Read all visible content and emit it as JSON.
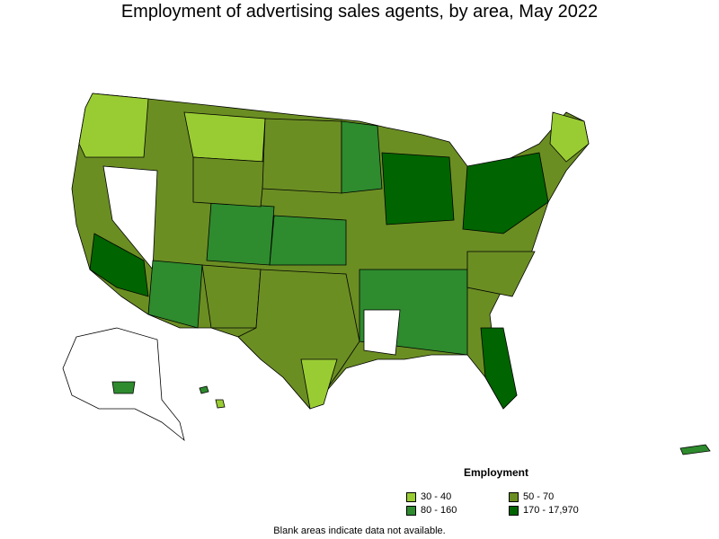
{
  "title": "Employment of advertising sales agents, by area, May 2022",
  "legend": {
    "title": "Employment",
    "items": [
      {
        "label": "30 - 40",
        "color": "#99cc33"
      },
      {
        "label": "50 - 70",
        "color": "#6b8e23"
      },
      {
        "label": "80 - 160",
        "color": "#2e8b2e"
      },
      {
        "label": "170 - 17,970",
        "color": "#006400"
      }
    ]
  },
  "footnote": "Blank areas indicate data not available."
}
